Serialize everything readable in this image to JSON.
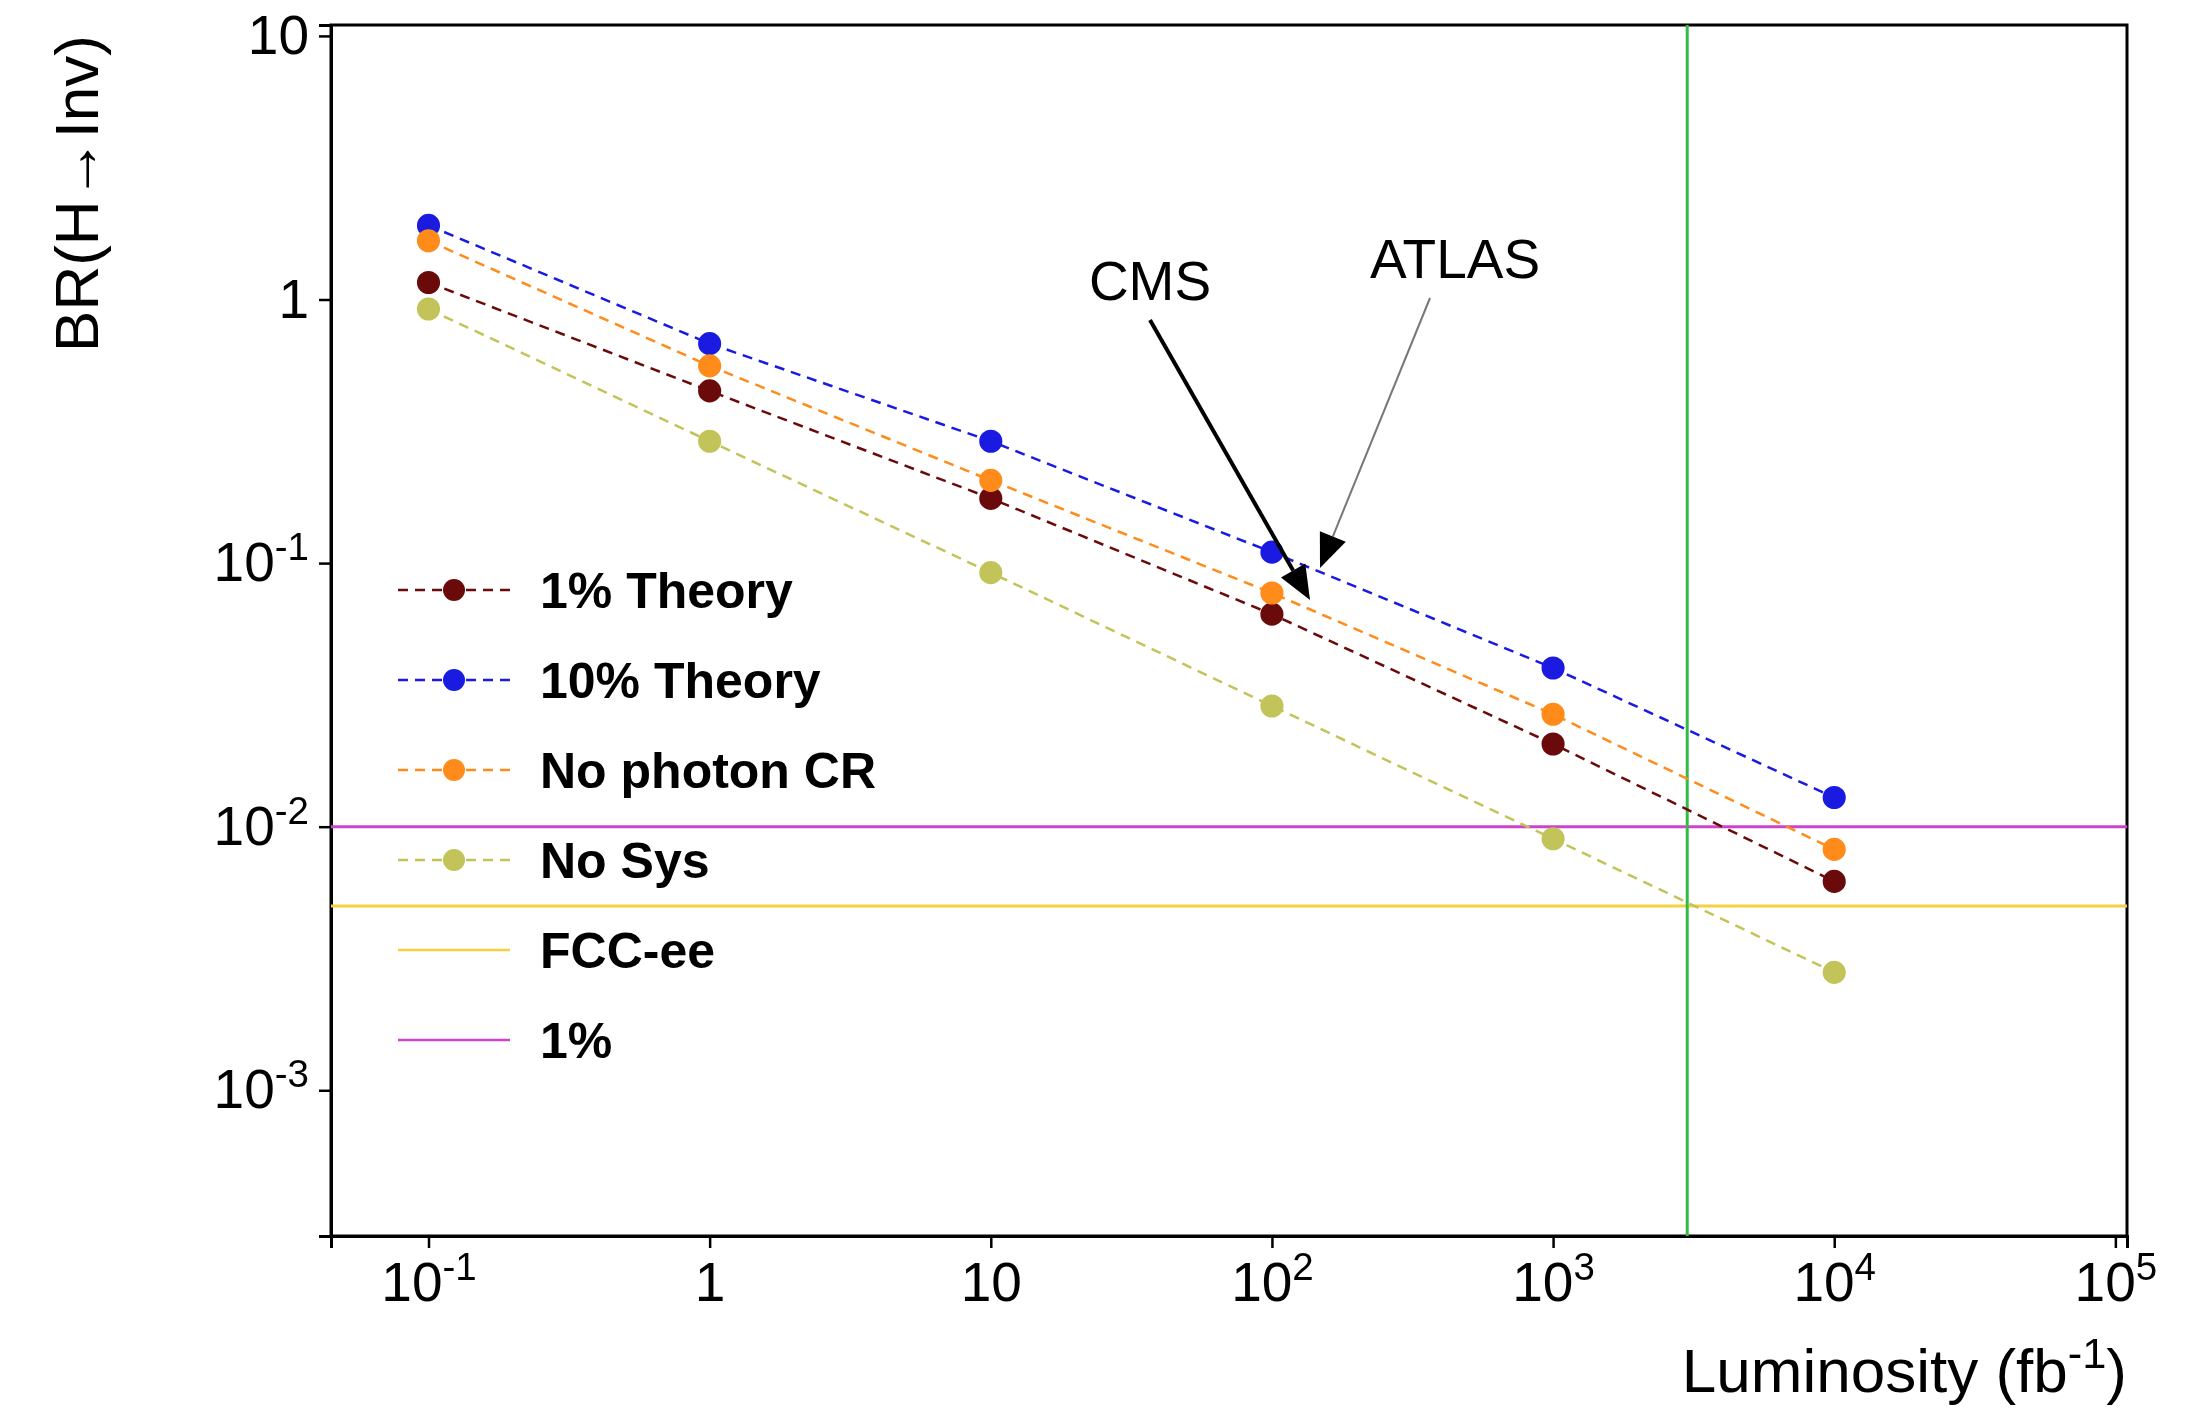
{
  "chart_data": {
    "type": "line",
    "xlabel": "Luminosity (fb$^{-1}$)",
    "ylabel": "BR(H→Inv)",
    "log": "xy",
    "x": [
      0.1,
      1,
      10,
      100,
      1000,
      10000
    ],
    "series": [
      {
        "name": "1% Theory",
        "color": "#6b0a0a",
        "values": [
          1.16,
          0.45,
          0.176,
          0.064,
          0.0206,
          0.0062
        ]
      },
      {
        "name": "10% Theory",
        "color": "#1a1ae0",
        "values": [
          1.91,
          0.68,
          0.29,
          0.11,
          0.04,
          0.0129
        ]
      },
      {
        "name": "No photon CR",
        "color": "#ff8c1a",
        "values": [
          1.67,
          0.56,
          0.206,
          0.077,
          0.0267,
          0.0082
        ]
      },
      {
        "name": "No Sys",
        "color": "#c2c45a",
        "values": [
          0.92,
          0.29,
          0.092,
          0.0287,
          0.009,
          0.0028
        ]
      }
    ],
    "marker": "circle",
    "line_style": "dashed",
    "legend": "left",
    "grid": false,
    "xlim": [
      0.045,
      110000
    ],
    "ylim": [
      0.00028,
      11
    ],
    "xticks": [
      {
        "value": 0.1,
        "label": "10$^{-1}$"
      },
      1,
      10,
      {
        "value": 100,
        "label": "10$^{2}$"
      },
      {
        "value": 1000,
        "label": "10$^{3}$"
      },
      {
        "value": 10000,
        "label": "10$^{4}$"
      },
      {
        "value": 100000,
        "label": "10$^{5}$"
      }
    ],
    "yticks": [
      {
        "value": 0.001,
        "label": "10$^{-3}$"
      },
      {
        "value": 0.01,
        "label": "10$^{-2}$"
      },
      {
        "value": 0.1,
        "label": "10$^{-1}$"
      },
      1,
      10
    ],
    "ref_lines": [
      {
        "axis": "y",
        "value": 0.005,
        "label": "FCC-ee",
        "color": "#f5d040"
      },
      {
        "axis": "y",
        "value": 0.01,
        "label": "1%",
        "color": "#cc44cc"
      },
      {
        "axis": "x",
        "value": 3000,
        "color": "#33bb44"
      }
    ],
    "annotations": [
      "CMS",
      "ATLAS"
    ]
  }
}
